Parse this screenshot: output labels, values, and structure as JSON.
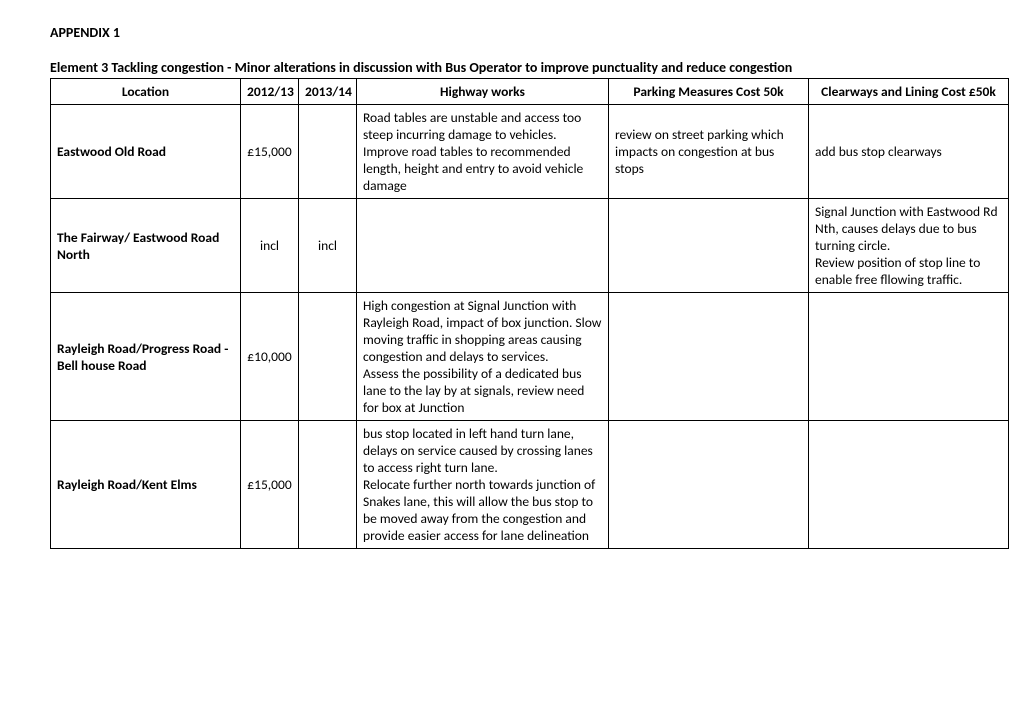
{
  "appendix_label": "APPENDIX 1",
  "subtitle": "Element 3  Tackling congestion - Minor alterations in discussion with Bus Operator to improve punctuality and reduce congestion",
  "columns": {
    "location": "Location",
    "y2012_13": "2012/13",
    "y2013_14": "2013/14",
    "highway_works": "Highway works",
    "parking_measures": "Parking Measures Cost 50k",
    "clearways": "Clearways and Lining Cost £50k"
  },
  "rows": [
    {
      "location": "Eastwood Old Road",
      "y2012_13": "£15,000",
      "y2013_14": "",
      "highway_works": "Road tables are unstable and access too steep incurring damage to vehicles. Improve road tables to recommended length, height and entry to avoid vehicle damage",
      "parking_measures": "review on street parking which impacts on congestion at bus stops",
      "clearways": "add bus stop clearways"
    },
    {
      "location": "The Fairway/ Eastwood Road North",
      "y2012_13": "incl",
      "y2013_14": "incl",
      "highway_works": "",
      "parking_measures": "",
      "clearways": "Signal Junction with Eastwood Rd Nth, causes delays due to bus turning circle.\nReview position of stop line to enable free fllowing traffic."
    },
    {
      "location": "Rayleigh Road/Progress Road  - Bell house Road",
      "y2012_13": "£10,000",
      "y2013_14": "",
      "highway_works": "High congestion at Signal Junction with Rayleigh Road, impact of box junction. Slow moving traffic in shopping areas causing congestion and delays to services.\nAssess the possibility of a dedicated bus lane to the lay by at signals, review need for box at Junction",
      "parking_measures": "",
      "clearways": ""
    },
    {
      "location": "Rayleigh Road/Kent Elms",
      "y2012_13": "£15,000",
      "y2013_14": "",
      "highway_works": "bus stop located in left hand turn lane, delays on service caused by crossing lanes to access right turn lane.\nRelocate further north towards junction of Snakes lane,  this will allow the bus stop to be moved away from the congestion and provide easier access for lane delineation",
      "parking_measures": "",
      "clearways": ""
    }
  ]
}
